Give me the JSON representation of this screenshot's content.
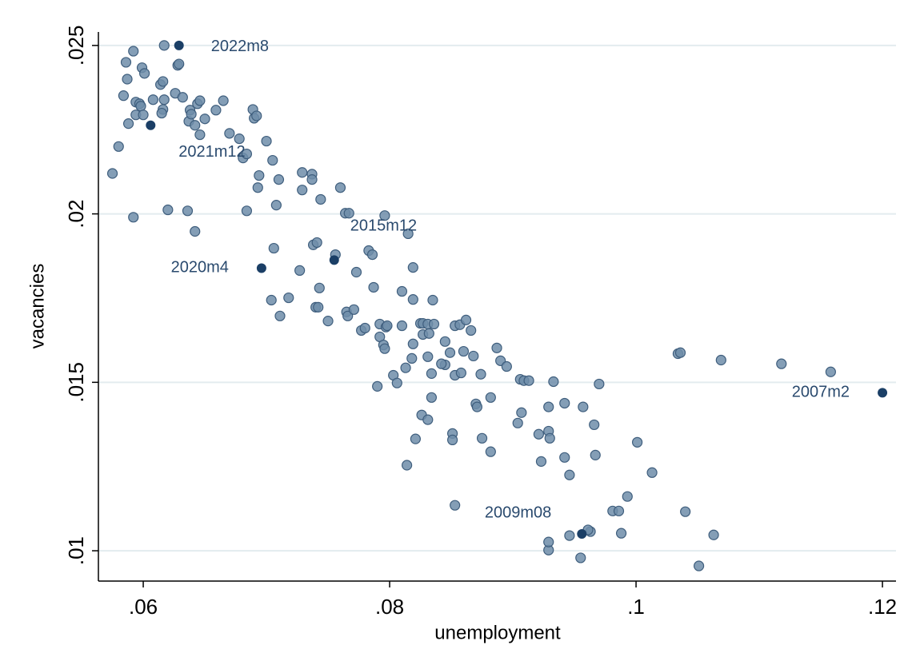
{
  "chart_data": {
    "type": "scatter",
    "x_label": "unemployment",
    "y_label": "vacancies",
    "xlim": [
      0.05636,
      0.1211
    ],
    "ylim": [
      0.0091,
      0.0254
    ],
    "xticks": [
      {
        "value": 0.06,
        "label": ".06"
      },
      {
        "value": 0.08,
        "label": ".08"
      },
      {
        "value": 0.1,
        "label": ".1"
      },
      {
        "value": 0.12,
        "label": ".12"
      }
    ],
    "yticks": [
      {
        "value": 0.01,
        "label": ".01"
      },
      {
        "value": 0.015,
        "label": ".015"
      },
      {
        "value": 0.02,
        "label": ".02"
      },
      {
        "value": 0.025,
        "label": ".025"
      }
    ],
    "grid": true,
    "series": [
      {
        "color": "#6f8da9",
        "x": [
          0.0575,
          0.058,
          0.0592,
          0.0586,
          0.0587,
          0.0584,
          0.0592,
          0.0594,
          0.0588,
          0.0594,
          0.0597,
          0.0598,
          0.0599,
          0.0601,
          0.06,
          0.0608,
          0.0614,
          0.0616,
          0.0616,
          0.0615,
          0.0617,
          0.0617,
          0.062,
          0.0626,
          0.0628,
          0.0629,
          0.0632,
          0.0636,
          0.0637,
          0.0638,
          0.0639,
          0.0642,
          0.0642,
          0.0644,
          0.0646,
          0.0646,
          0.065,
          0.0659,
          0.0665,
          0.067,
          0.0678,
          0.0681,
          0.0684,
          0.0684,
          0.0689,
          0.069,
          0.0692,
          0.0693,
          0.0694,
          0.07,
          0.0705,
          0.0706,
          0.0708,
          0.071,
          0.0704,
          0.0711,
          0.0718,
          0.0727,
          0.0729,
          0.0729,
          0.0737,
          0.0737,
          0.0738,
          0.0741,
          0.074,
          0.0742,
          0.0744,
          0.0743,
          0.075,
          0.0756,
          0.076,
          0.0764,
          0.0765,
          0.0766,
          0.0767,
          0.0771,
          0.0773,
          0.0777,
          0.078,
          0.0783,
          0.0786,
          0.0787,
          0.0792,
          0.079,
          0.0792,
          0.0795,
          0.0796,
          0.0796,
          0.0797,
          0.0798,
          0.0803,
          0.0806,
          0.081,
          0.081,
          0.0813,
          0.0815,
          0.0818,
          0.0819,
          0.0819,
          0.0819,
          0.0825,
          0.0826,
          0.0827,
          0.0827,
          0.0831,
          0.0831,
          0.0832,
          0.0834,
          0.0834,
          0.0835,
          0.0831,
          0.0836,
          0.0845,
          0.0845,
          0.0842,
          0.0849,
          0.0853,
          0.0853,
          0.0857,
          0.0858,
          0.086,
          0.0862,
          0.0866,
          0.0868,
          0.087,
          0.0871,
          0.0875,
          0.0874,
          0.0882,
          0.0882,
          0.0887,
          0.089,
          0.0895,
          0.0906,
          0.0904,
          0.0907,
          0.0909,
          0.0913,
          0.0921,
          0.0923,
          0.0929,
          0.0929,
          0.093,
          0.0933,
          0.0942,
          0.0942,
          0.0946,
          0.0957,
          0.0966,
          0.0967,
          0.097,
          0.0963,
          0.0981,
          0.0988,
          0.0993,
          0.1001,
          0.1013,
          0.1034,
          0.1036,
          0.104,
          0.1051,
          0.1063,
          0.1069,
          0.1118,
          0.1158,
          0.0853,
          0.0821,
          0.0814,
          0.0929,
          0.0929,
          0.0946,
          0.0955,
          0.0961,
          0.0986,
          0.0851,
          0.0851
        ],
        "values": [
          0.0212,
          0.022,
          0.0199,
          0.0245,
          0.024,
          0.02351,
          0.02483,
          0.02332,
          0.02268,
          0.02294,
          0.02327,
          0.0232,
          0.02434,
          0.02417,
          0.02294,
          0.02339,
          0.02384,
          0.02393,
          0.0231,
          0.02299,
          0.02339,
          0.025,
          0.02012,
          0.02358,
          0.02441,
          0.02445,
          0.02346,
          0.02009,
          0.02275,
          0.02308,
          0.02296,
          0.02263,
          0.01948,
          0.02327,
          0.02336,
          0.02235,
          0.02282,
          0.02308,
          0.02336,
          0.02239,
          0.02223,
          0.02166,
          0.02009,
          0.02178,
          0.0231,
          0.02284,
          0.02291,
          0.02078,
          0.02114,
          0.02216,
          0.02159,
          0.01898,
          0.02026,
          0.02102,
          0.01744,
          0.01697,
          0.01751,
          0.01832,
          0.02123,
          0.02071,
          0.02118,
          0.02102,
          0.01908,
          0.01915,
          0.01723,
          0.01723,
          0.02043,
          0.0178,
          0.01682,
          0.01879,
          0.02078,
          0.02002,
          0.01709,
          0.01697,
          0.02002,
          0.01716,
          0.01827,
          0.01654,
          0.01661,
          0.01891,
          0.01879,
          0.01782,
          0.01635,
          0.01488,
          0.01673,
          0.01611,
          0.016,
          0.01995,
          0.01664,
          0.01668,
          0.01521,
          0.01498,
          0.01668,
          0.0177,
          0.01543,
          0.01941,
          0.01571,
          0.01841,
          0.01614,
          0.01746,
          0.01675,
          0.01403,
          0.01675,
          0.01642,
          0.01673,
          0.01576,
          0.01645,
          0.01526,
          0.01455,
          0.01744,
          0.01389,
          0.01673,
          0.01621,
          0.01552,
          0.01555,
          0.01588,
          0.01668,
          0.01521,
          0.01671,
          0.01528,
          0.01592,
          0.01685,
          0.01654,
          0.01578,
          0.01436,
          0.01427,
          0.01334,
          0.01524,
          0.01455,
          0.01294,
          0.01602,
          0.01564,
          0.01547,
          0.01509,
          0.01379,
          0.0141,
          0.01505,
          0.01505,
          0.01346,
          0.01265,
          0.01427,
          0.01355,
          0.01334,
          0.01502,
          0.01438,
          0.01277,
          0.01225,
          0.01427,
          0.01374,
          0.01284,
          0.01495,
          0.01057,
          0.01118,
          0.01052,
          0.01161,
          0.01322,
          0.01232,
          0.01585,
          0.01588,
          0.01116,
          0.00955,
          0.01047,
          0.01566,
          0.01555,
          0.01531,
          0.01135,
          0.01332,
          0.01254,
          0.01002,
          0.01026,
          0.01045,
          0.00979,
          0.01062,
          0.01118,
          0.01348,
          0.01329
        ]
      },
      {
        "color": "#1b3f66",
        "x": [
          0.0629,
          0.0606,
          0.0696,
          0.0755,
          0.12,
          0.0956
        ],
        "values": [
          0.025,
          0.02263,
          0.01839,
          0.01863,
          0.01469,
          0.0105
        ],
        "labels": [
          "2022m8",
          "2021m12",
          "2020m4",
          "2015m12",
          "2007m2",
          "2009m08"
        ]
      }
    ]
  }
}
